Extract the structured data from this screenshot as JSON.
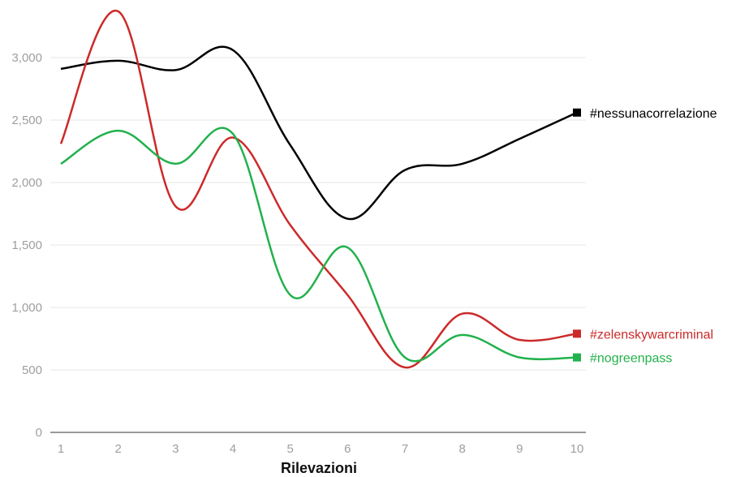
{
  "chart_data": {
    "type": "line",
    "title": "",
    "xlabel": "Rilevazioni",
    "ylabel": "",
    "x": [
      1,
      2,
      3,
      4,
      5,
      6,
      7,
      8,
      9,
      10
    ],
    "x_tick_labels": [
      "1",
      "2",
      "3",
      "4",
      "5",
      "6",
      "7",
      "8",
      "9",
      "10"
    ],
    "ylim": [
      0,
      3400
    ],
    "y_ticks": [
      0,
      500,
      1000,
      1500,
      2000,
      2500,
      3000
    ],
    "y_tick_labels": [
      "0",
      "500",
      "1,000",
      "1,500",
      "2,000",
      "2,500",
      "3,000"
    ],
    "grid": true,
    "legend": "end-of-line labels",
    "series": [
      {
        "name": "#nessunacorrelazione",
        "color": "#000000",
        "values": [
          2910,
          2975,
          2900,
          3060,
          2300,
          1710,
          2100,
          2150,
          2350,
          2560
        ]
      },
      {
        "name": "#zelenskywarcriminal",
        "color": "#cc2a2a",
        "values": [
          2310,
          3370,
          1810,
          2360,
          1660,
          1100,
          520,
          950,
          740,
          790
        ]
      },
      {
        "name": "#nogreenpass",
        "color": "#22b14c",
        "values": [
          2150,
          2415,
          2150,
          2390,
          1100,
          1480,
          600,
          780,
          600,
          600
        ]
      }
    ]
  }
}
